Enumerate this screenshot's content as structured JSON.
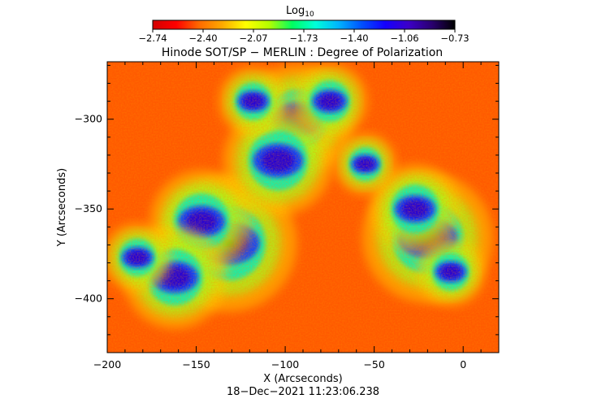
{
  "colorbar": {
    "title_main": "Log",
    "title_sub": "10",
    "tick_labels": [
      "−2.74",
      "−2.40",
      "−2.07",
      "−1.73",
      "−1.40",
      "−1.06",
      "−0.73"
    ],
    "range": [
      -2.74,
      -0.73
    ],
    "colormap": [
      "#d20000",
      "#ff0000",
      "#ff6a00",
      "#ffaa00",
      "#ffff00",
      "#b4ff00",
      "#00ff60",
      "#00ffd8",
      "#00b4ff",
      "#0050ff",
      "#1400ff",
      "#3c00c8",
      "#2a0070",
      "#000000"
    ]
  },
  "chart_data": {
    "type": "heatmap",
    "title": "Hinode SOT/SP − MERLIN : Degree of Polarization",
    "xlabel": "X (Arcseconds)",
    "ylabel": "Y (Arcseconds)",
    "xlim": [
      -200,
      20
    ],
    "ylim": [
      -430,
      -268
    ],
    "x_ticks": [
      -200,
      -150,
      -100,
      -50,
      0
    ],
    "x_tick_labels": [
      "−200",
      "−150",
      "−100",
      "−50",
      "0"
    ],
    "y_ticks": [
      -300,
      -350,
      -400
    ],
    "y_tick_labels": [
      "−300",
      "−350",
      "−400"
    ],
    "value_scale": "log10",
    "value_range": [
      -2.74,
      -0.73
    ],
    "grid": false,
    "features": [
      {
        "x": -132,
        "y": -369,
        "level": 1.0
      },
      {
        "x": -147,
        "y": -357,
        "level": 0.75
      },
      {
        "x": -20,
        "y": -366,
        "level": 0.95
      },
      {
        "x": -93,
        "y": -300,
        "level": 0.8
      },
      {
        "x": -104,
        "y": -323,
        "level": 0.8
      },
      {
        "x": -162,
        "y": -388,
        "level": 0.75
      },
      {
        "x": -27,
        "y": -350,
        "level": 0.65
      },
      {
        "x": -75,
        "y": -290,
        "level": 0.55
      },
      {
        "x": -118,
        "y": -290,
        "level": 0.5
      },
      {
        "x": -55,
        "y": -325,
        "level": 0.45
      },
      {
        "x": -7,
        "y": -385,
        "level": 0.5
      },
      {
        "x": -183,
        "y": -377,
        "level": 0.5
      }
    ]
  },
  "timestamp": "18−Dec−2021 11:23:06.238"
}
